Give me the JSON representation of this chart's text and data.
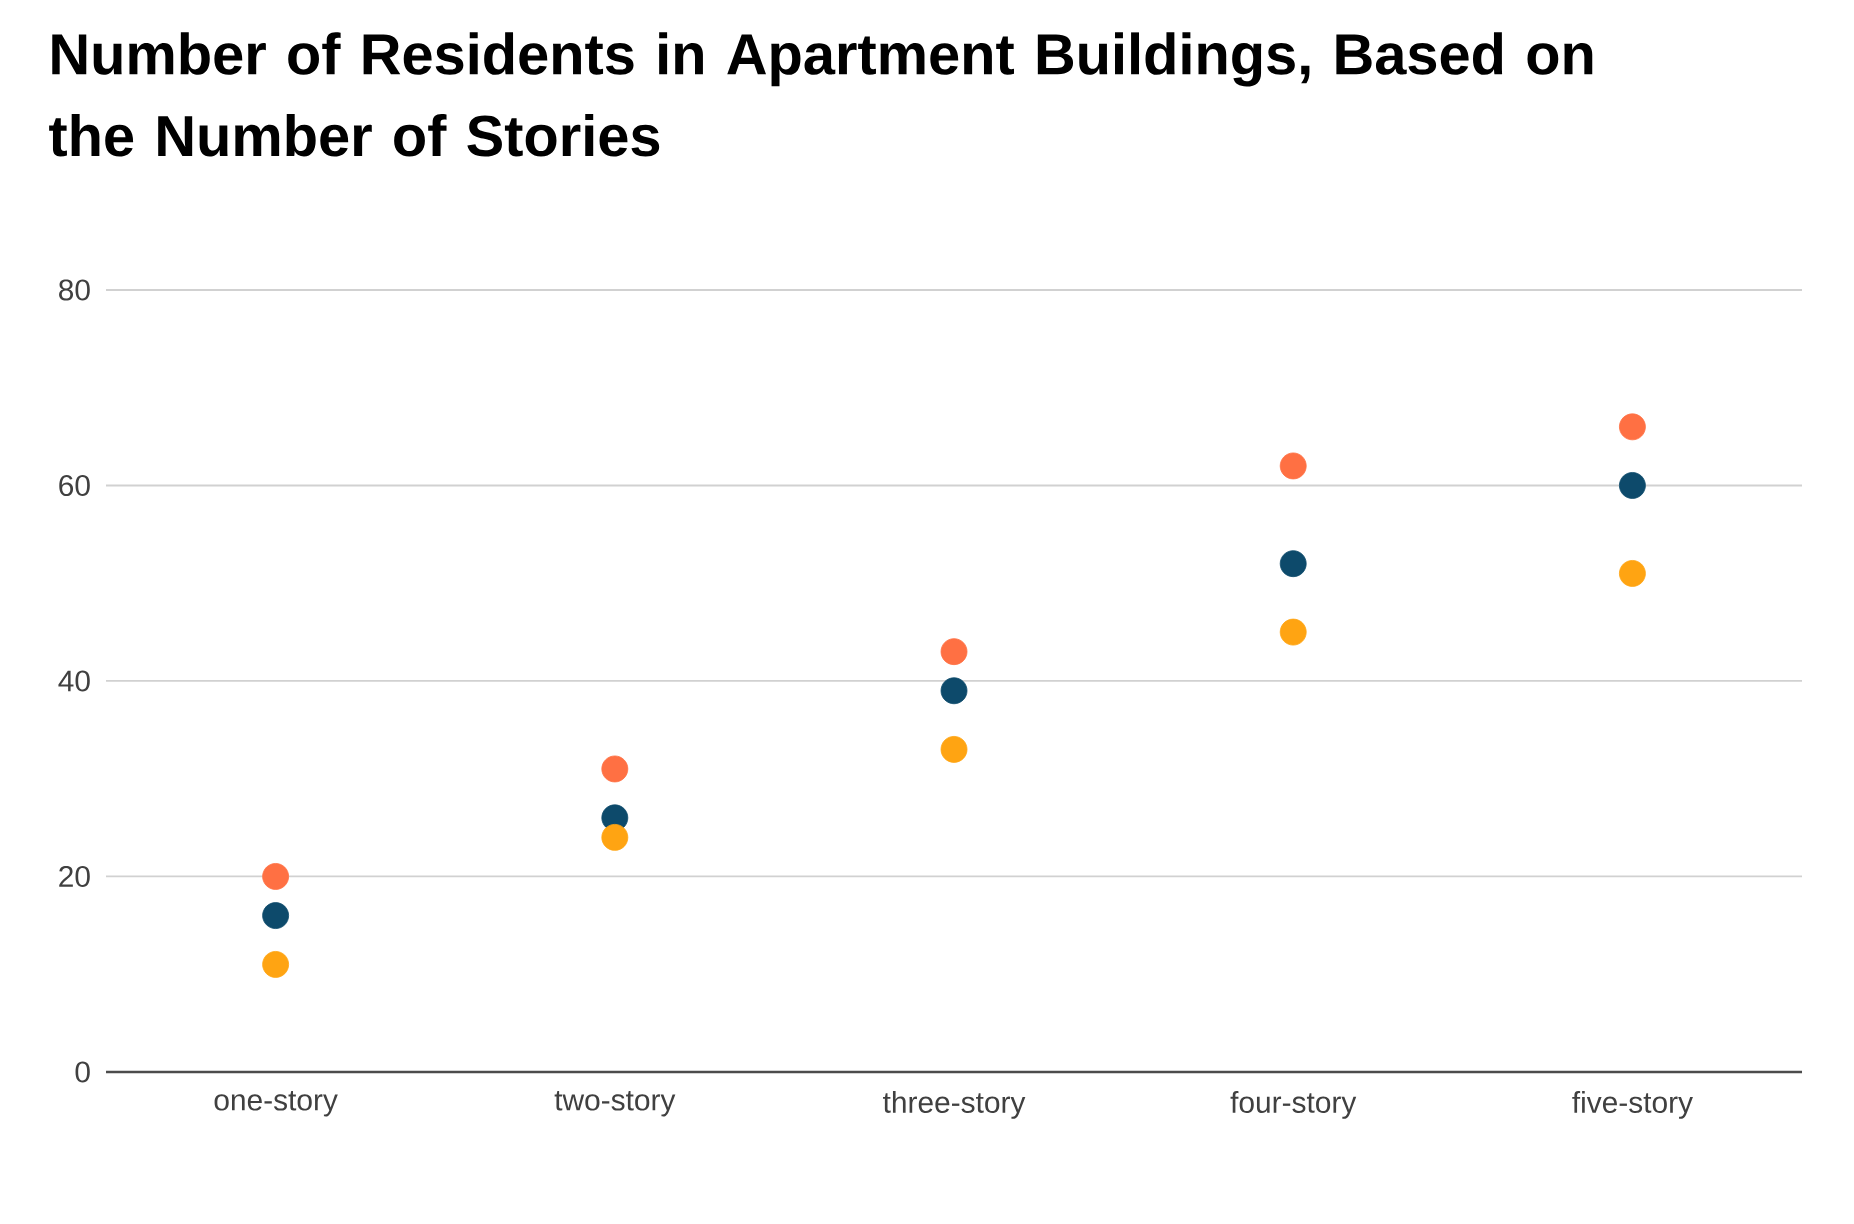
{
  "chart_data": {
    "type": "scatter",
    "title": "Number of Residents in Apartment Buildings, Based on the Number of Stories",
    "categories": [
      "one-story",
      "two-story",
      "three-story",
      "four-story",
      "five-story"
    ],
    "series": [
      {
        "color": "#ff7043",
        "values": [
          20,
          31,
          43,
          62,
          66
        ]
      },
      {
        "color": "#0d4a6b",
        "values": [
          16,
          26,
          39,
          52,
          60
        ]
      },
      {
        "color": "#ffa412",
        "values": [
          11,
          24,
          33,
          45,
          51
        ]
      }
    ],
    "ylim": [
      0,
      80
    ],
    "yticks": [
      0,
      20,
      40,
      60,
      80
    ],
    "grid": "y",
    "marker": "circle"
  }
}
